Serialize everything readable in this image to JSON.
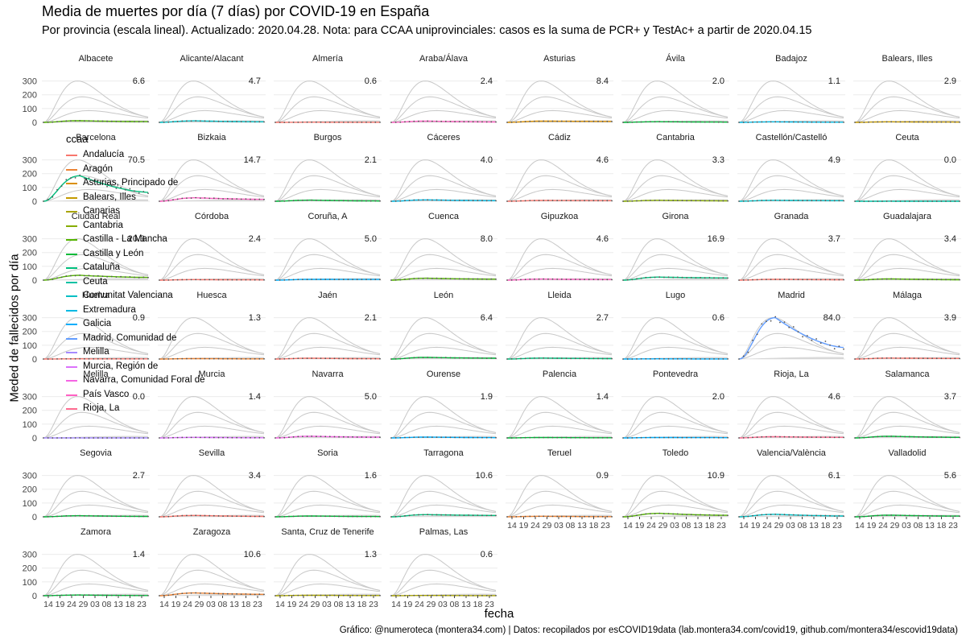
{
  "chart_data": {
    "type": "line",
    "title": "Media de muertes por día (7 días) por COVID-19 en España",
    "subtitle": "Por provincia (escala lineal). Actualizado: 2020.04.28. Nota: para CCAA uniprovinciales: casos es la suma de PCR+ y TestAc+ a partir de 2020.04.15",
    "xlabel": "fecha",
    "ylabel": "Meded de fallecidos por día",
    "caption": "Gráfico: @numeroteca (montera34.com) | Datos: recopilados por esCOVID19data (lab.montera34.com/covid19, github.com/montera34/escovid19data)",
    "ylim": [
      0,
      350
    ],
    "y_ticks": [
      "0",
      "100",
      "200",
      "300"
    ],
    "x_ticks": [
      "14",
      "19",
      "24",
      "29",
      "03",
      "08",
      "13",
      "18",
      "23"
    ],
    "grid": true,
    "legend": {
      "title": "ccaa",
      "placement": "left",
      "entries": [
        {
          "name": "Andalucía",
          "color": "#F8766D"
        },
        {
          "name": "Aragón",
          "color": "#EB8335"
        },
        {
          "name": "Asturias, Principado de",
          "color": "#DA8F00"
        },
        {
          "name": "Balears, Illes",
          "color": "#C49A00"
        },
        {
          "name": "Canarias",
          "color": "#A9A400"
        },
        {
          "name": "Cantabria",
          "color": "#86AC00"
        },
        {
          "name": "Castilla - La Mancha",
          "color": "#53B400"
        },
        {
          "name": "Castilla y León",
          "color": "#00BA38"
        },
        {
          "name": "Cataluña",
          "color": "#00BF7D"
        },
        {
          "name": "Ceuta",
          "color": "#00C1A3"
        },
        {
          "name": "Comunitat Valenciana",
          "color": "#00BFC4"
        },
        {
          "name": "Extremadura",
          "color": "#00B9E3"
        },
        {
          "name": "Galicia",
          "color": "#00ADFA"
        },
        {
          "name": "Madrid, Comunidad de",
          "color": "#619CFF"
        },
        {
          "name": "Melilla",
          "color": "#A58AFF"
        },
        {
          "name": "Murcia, Región de",
          "color": "#DB72FB"
        },
        {
          "name": "Navarra, Comunidad Foral de",
          "color": "#F564E3"
        },
        {
          "name": "País Vasco",
          "color": "#FF61C3"
        },
        {
          "name": "Rioja, La",
          "color": "#FF6C91"
        }
      ]
    },
    "background_reference_curves": [
      {
        "peak_x": 15,
        "peak_y": 300
      },
      {
        "peak_x": 17,
        "peak_y": 185
      },
      {
        "peak_x": 20,
        "peak_y": 85
      }
    ],
    "panels": [
      {
        "name": "Albacete",
        "ccaa": "Castilla - La Mancha",
        "label": "6.6",
        "peak": 12,
        "end": 5
      },
      {
        "name": "Alicante/Alacant",
        "ccaa": "Comunitat Valenciana",
        "label": "4.7",
        "peak": 11,
        "end": 4
      },
      {
        "name": "Almería",
        "ccaa": "Andalucía",
        "label": "0.6",
        "peak": 1,
        "end": 0.5
      },
      {
        "name": "Araba/Álava",
        "ccaa": "País Vasco",
        "label": "2.4",
        "peak": 9,
        "end": 3
      },
      {
        "name": "Asturias",
        "ccaa": "Asturias, Principado de",
        "label": "8.4",
        "peak": 9,
        "end": 7
      },
      {
        "name": "Ávila",
        "ccaa": "Castilla y León",
        "label": "2.0",
        "peak": 5,
        "end": 2
      },
      {
        "name": "Badajoz",
        "ccaa": "Extremadura",
        "label": "1.1",
        "peak": 4,
        "end": 1
      },
      {
        "name": "Balears, Illes",
        "ccaa": "Balears, Illes",
        "label": "2.9",
        "peak": 4,
        "end": 2
      },
      {
        "name": "Barcelona",
        "ccaa": "Cataluña",
        "label": "70.5",
        "peak": 185,
        "end": 65
      },
      {
        "name": "Bizkaia",
        "ccaa": "País Vasco",
        "label": "14.7",
        "peak": 25,
        "end": 14
      },
      {
        "name": "Burgos",
        "ccaa": "Castilla y León",
        "label": "2.1",
        "peak": 8,
        "end": 2
      },
      {
        "name": "Cáceres",
        "ccaa": "Extremadura",
        "label": "4.0",
        "peak": 10,
        "end": 4
      },
      {
        "name": "Cádiz",
        "ccaa": "Andalucía",
        "label": "4.6",
        "peak": 6,
        "end": 4
      },
      {
        "name": "Cantabria",
        "ccaa": "Cantabria",
        "label": "3.3",
        "peak": 7,
        "end": 3
      },
      {
        "name": "Castellón/Castelló",
        "ccaa": "Comunitat Valenciana",
        "label": "4.9",
        "peak": 7,
        "end": 4
      },
      {
        "name": "Ceuta",
        "ccaa": "Ceuta",
        "label": "0.0",
        "peak": 0.3,
        "end": 0
      },
      {
        "name": "Ciudad Real",
        "ccaa": "Castilla - La Mancha",
        "label": "20.3",
        "peak": 35,
        "end": 20
      },
      {
        "name": "Córdoba",
        "ccaa": "Andalucía",
        "label": "2.4",
        "peak": 4,
        "end": 2
      },
      {
        "name": "Coruña, A",
        "ccaa": "Galicia",
        "label": "5.0",
        "peak": 6,
        "end": 5
      },
      {
        "name": "Cuenca",
        "ccaa": "Castilla - La Mancha",
        "label": "8.0",
        "peak": 14,
        "end": 7
      },
      {
        "name": "Gipuzkoa",
        "ccaa": "País Vasco",
        "label": "4.6",
        "peak": 8,
        "end": 4
      },
      {
        "name": "Girona",
        "ccaa": "Cataluña",
        "label": "16.9",
        "peak": 22,
        "end": 16
      },
      {
        "name": "Granada",
        "ccaa": "Andalucía",
        "label": "3.7",
        "peak": 6,
        "end": 3
      },
      {
        "name": "Guadalajara",
        "ccaa": "Castilla - La Mancha",
        "label": "3.4",
        "peak": 9,
        "end": 3
      },
      {
        "name": "Huelva",
        "ccaa": "Andalucía",
        "label": "0.9",
        "peak": 1.5,
        "end": 1
      },
      {
        "name": "Huesca",
        "ccaa": "Aragón",
        "label": "1.3",
        "peak": 3,
        "end": 1
      },
      {
        "name": "Jaén",
        "ccaa": "Andalucía",
        "label": "2.1",
        "peak": 6,
        "end": 2
      },
      {
        "name": "León",
        "ccaa": "Castilla y León",
        "label": "6.4",
        "peak": 12,
        "end": 6
      },
      {
        "name": "Lleida",
        "ccaa": "Cataluña",
        "label": "2.7",
        "peak": 7,
        "end": 3
      },
      {
        "name": "Lugo",
        "ccaa": "Galicia",
        "label": "0.6",
        "peak": 1.5,
        "end": 0.5
      },
      {
        "name": "Madrid",
        "ccaa": "Madrid, Comunidad de",
        "label": "84.0",
        "peak": 300,
        "end": 84
      },
      {
        "name": "Málaga",
        "ccaa": "Andalucía",
        "label": "3.9",
        "peak": 7,
        "end": 4
      },
      {
        "name": "Melilla",
        "ccaa": "Melilla",
        "label": "0.0",
        "peak": 0.3,
        "end": 0
      },
      {
        "name": "Murcia",
        "ccaa": "Murcia, Región de",
        "label": "1.4",
        "peak": 4,
        "end": 1
      },
      {
        "name": "Navarra",
        "ccaa": "Navarra, Comunidad Foral de",
        "label": "5.0",
        "peak": 12,
        "end": 5
      },
      {
        "name": "Ourense",
        "ccaa": "Galicia",
        "label": "1.9",
        "peak": 6,
        "end": 2
      },
      {
        "name": "Palencia",
        "ccaa": "Castilla y León",
        "label": "1.4",
        "peak": 3,
        "end": 1
      },
      {
        "name": "Pontevedra",
        "ccaa": "Galicia",
        "label": "2.0",
        "peak": 3,
        "end": 2
      },
      {
        "name": "Rioja, La",
        "ccaa": "Rioja, La",
        "label": "4.6",
        "peak": 9,
        "end": 4
      },
      {
        "name": "Salamanca",
        "ccaa": "Castilla y León",
        "label": "3.7",
        "peak": 12,
        "end": 4
      },
      {
        "name": "Segovia",
        "ccaa": "Castilla y León",
        "label": "2.7",
        "peak": 8,
        "end": 3
      },
      {
        "name": "Sevilla",
        "ccaa": "Andalucía",
        "label": "3.4",
        "peak": 10,
        "end": 3
      },
      {
        "name": "Soria",
        "ccaa": "Castilla y León",
        "label": "1.6",
        "peak": 6,
        "end": 2
      },
      {
        "name": "Tarragona",
        "ccaa": "Cataluña",
        "label": "10.6",
        "peak": 16,
        "end": 10
      },
      {
        "name": "Teruel",
        "ccaa": "Aragón",
        "label": "0.9",
        "peak": 4,
        "end": 1
      },
      {
        "name": "Toledo",
        "ccaa": "Castilla - La Mancha",
        "label": "10.9",
        "peak": 25,
        "end": 11
      },
      {
        "name": "Valencia/València",
        "ccaa": "Comunitat Valenciana",
        "label": "6.1",
        "peak": 18,
        "end": 6
      },
      {
        "name": "Valladolid",
        "ccaa": "Castilla y León",
        "label": "5.6",
        "peak": 12,
        "end": 5
      },
      {
        "name": "Zamora",
        "ccaa": "Castilla y León",
        "label": "1.4",
        "peak": 5,
        "end": 1
      },
      {
        "name": "Zaragoza",
        "ccaa": "Aragón",
        "label": "10.6",
        "peak": 20,
        "end": 10
      },
      {
        "name": "Santa, Cruz de Tenerife",
        "ccaa": "Canarias",
        "label": "1.3",
        "peak": 3,
        "end": 1
      },
      {
        "name": "Palmas, Las",
        "ccaa": "Canarias",
        "label": "0.6",
        "peak": 2,
        "end": 0.5
      }
    ]
  }
}
